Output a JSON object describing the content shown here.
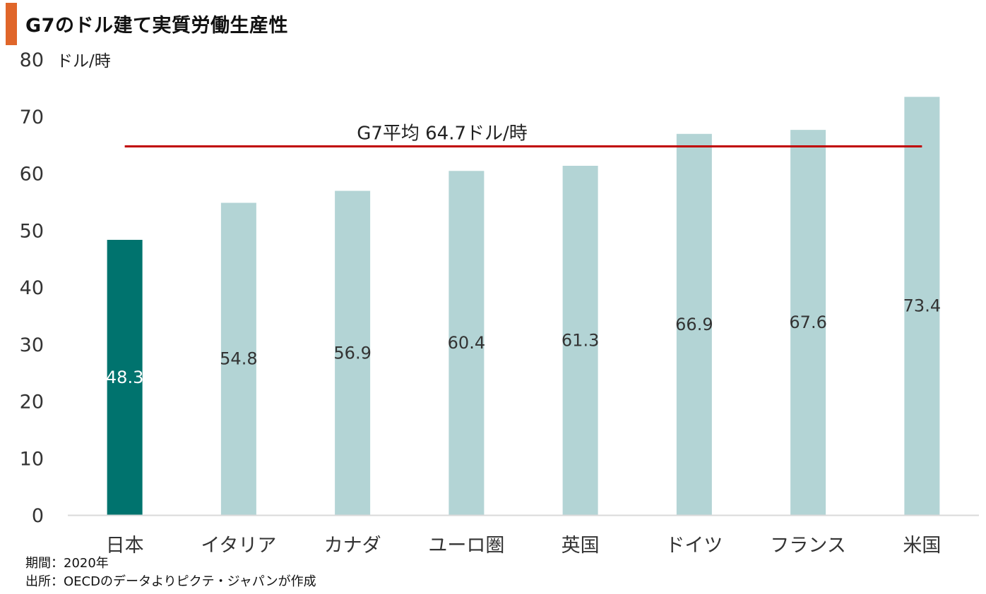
{
  "title": "G7のドル建て実質労働生産性",
  "colors": {
    "accent": "#e0662a",
    "highlight_bar": "#00736e",
    "bar": "#b3d4d5",
    "average_line": "#c00000",
    "axis_line": "#d9d9d9",
    "highlight_label": "#ffffff",
    "label": "#333333"
  },
  "chart_data": {
    "type": "bar",
    "title": "G7のドル建て実質労働生産性",
    "categories": [
      "日本",
      "イタリア",
      "カナダ",
      "ユーロ圏",
      "英国",
      "ドイツ",
      "フランス",
      "米国"
    ],
    "values": [
      48.3,
      54.8,
      56.9,
      60.4,
      61.3,
      66.9,
      67.6,
      73.4
    ],
    "data_labels": [
      "48.3",
      "54.8",
      "56.9",
      "60.4",
      "61.3",
      "66.9",
      "67.6",
      "73.4"
    ],
    "highlight_category": "日本",
    "yunit": "ドル/時",
    "ylim": [
      0,
      80
    ],
    "yticks": [
      0,
      10,
      20,
      30,
      40,
      50,
      60,
      70,
      80
    ],
    "grid": false,
    "average": {
      "value": 64.7,
      "label": "G7平均 64.7ドル/時"
    }
  },
  "footnotes": {
    "period": "期間：2020年",
    "source": "出所：OECDのデータよりピクテ・ジャパンが作成"
  }
}
